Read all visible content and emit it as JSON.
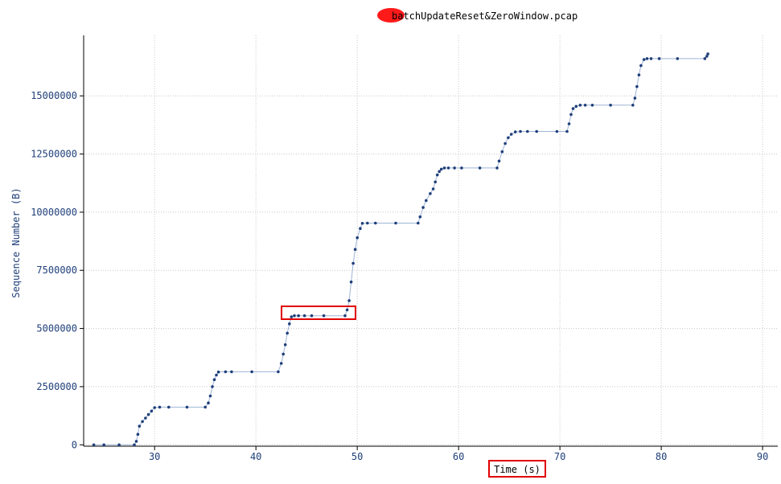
{
  "chart_data": {
    "type": "scatter",
    "title": "batchUpdateReset&ZeroWindow.pcap",
    "xlabel": "Time (s)",
    "ylabel": "Sequence Number (B)",
    "xlim": [
      23,
      91.5
    ],
    "ylim": [
      -60000,
      17600000
    ],
    "x_ticks": [
      30,
      40,
      50,
      60,
      70,
      80,
      90
    ],
    "y_ticks": [
      0,
      2500000,
      5000000,
      7500000,
      10000000,
      12500000,
      15000000
    ],
    "x_tick_labels": [
      "30",
      "40",
      "50",
      "60",
      "70",
      "80",
      "90"
    ],
    "y_tick_labels": [
      "0",
      "2500000",
      "5000000",
      "7500000",
      "10000000",
      "12500000",
      "15000000"
    ],
    "grid": true,
    "series": [
      {
        "color": "#1f3f7a",
        "line_color": "#9fb4d6",
        "points": [
          [
            24.0,
            0
          ],
          [
            25.0,
            0
          ],
          [
            26.5,
            0
          ],
          [
            28.0,
            0
          ],
          [
            28.2,
            150000
          ],
          [
            28.35,
            450000
          ],
          [
            28.5,
            800000
          ],
          [
            28.8,
            1000000
          ],
          [
            29.1,
            1150000
          ],
          [
            29.4,
            1300000
          ],
          [
            29.7,
            1450000
          ],
          [
            30.0,
            1600000
          ],
          [
            30.5,
            1620000
          ],
          [
            31.4,
            1620000
          ],
          [
            33.2,
            1620000
          ],
          [
            35.0,
            1620000
          ],
          [
            35.3,
            1800000
          ],
          [
            35.5,
            2100000
          ],
          [
            35.7,
            2500000
          ],
          [
            35.9,
            2800000
          ],
          [
            36.1,
            3000000
          ],
          [
            36.3,
            3130000
          ],
          [
            37.0,
            3140000
          ],
          [
            37.6,
            3140000
          ],
          [
            39.6,
            3140000
          ],
          [
            42.2,
            3140000
          ],
          [
            42.5,
            3500000
          ],
          [
            42.7,
            3900000
          ],
          [
            42.9,
            4300000
          ],
          [
            43.1,
            4800000
          ],
          [
            43.3,
            5200000
          ],
          [
            43.5,
            5500000
          ],
          [
            43.8,
            5550000
          ],
          [
            44.2,
            5550000
          ],
          [
            44.8,
            5550000
          ],
          [
            45.5,
            5550000
          ],
          [
            46.7,
            5550000
          ],
          [
            48.8,
            5550000
          ],
          [
            49.0,
            5800000
          ],
          [
            49.2,
            6200000
          ],
          [
            49.4,
            7000000
          ],
          [
            49.6,
            7800000
          ],
          [
            49.8,
            8400000
          ],
          [
            50.0,
            8900000
          ],
          [
            50.3,
            9300000
          ],
          [
            50.5,
            9520000
          ],
          [
            51.0,
            9530000
          ],
          [
            51.8,
            9530000
          ],
          [
            53.8,
            9530000
          ],
          [
            56.0,
            9530000
          ],
          [
            56.2,
            9800000
          ],
          [
            56.5,
            10200000
          ],
          [
            56.8,
            10500000
          ],
          [
            57.2,
            10800000
          ],
          [
            57.5,
            11000000
          ],
          [
            57.7,
            11300000
          ],
          [
            57.9,
            11600000
          ],
          [
            58.1,
            11750000
          ],
          [
            58.3,
            11850000
          ],
          [
            58.6,
            11900000
          ],
          [
            59.0,
            11900000
          ],
          [
            59.6,
            11900000
          ],
          [
            60.3,
            11900000
          ],
          [
            62.1,
            11900000
          ],
          [
            63.8,
            11900000
          ],
          [
            64.0,
            12200000
          ],
          [
            64.3,
            12600000
          ],
          [
            64.6,
            12950000
          ],
          [
            64.9,
            13200000
          ],
          [
            65.2,
            13350000
          ],
          [
            65.6,
            13450000
          ],
          [
            66.1,
            13470000
          ],
          [
            66.8,
            13470000
          ],
          [
            67.7,
            13470000
          ],
          [
            69.7,
            13470000
          ],
          [
            70.7,
            13470000
          ],
          [
            70.9,
            13800000
          ],
          [
            71.1,
            14200000
          ],
          [
            71.3,
            14450000
          ],
          [
            71.6,
            14550000
          ],
          [
            72.0,
            14600000
          ],
          [
            72.5,
            14600000
          ],
          [
            73.2,
            14600000
          ],
          [
            75.0,
            14600000
          ],
          [
            77.2,
            14600000
          ],
          [
            77.4,
            14900000
          ],
          [
            77.6,
            15400000
          ],
          [
            77.8,
            15900000
          ],
          [
            78.0,
            16300000
          ],
          [
            78.3,
            16560000
          ],
          [
            78.6,
            16600000
          ],
          [
            79.0,
            16600000
          ],
          [
            79.8,
            16600000
          ],
          [
            81.6,
            16600000
          ],
          [
            84.3,
            16600000
          ],
          [
            84.5,
            16700000
          ],
          [
            84.6,
            16800000
          ]
        ]
      }
    ]
  },
  "highlight": {
    "xlabel_box": true
  }
}
